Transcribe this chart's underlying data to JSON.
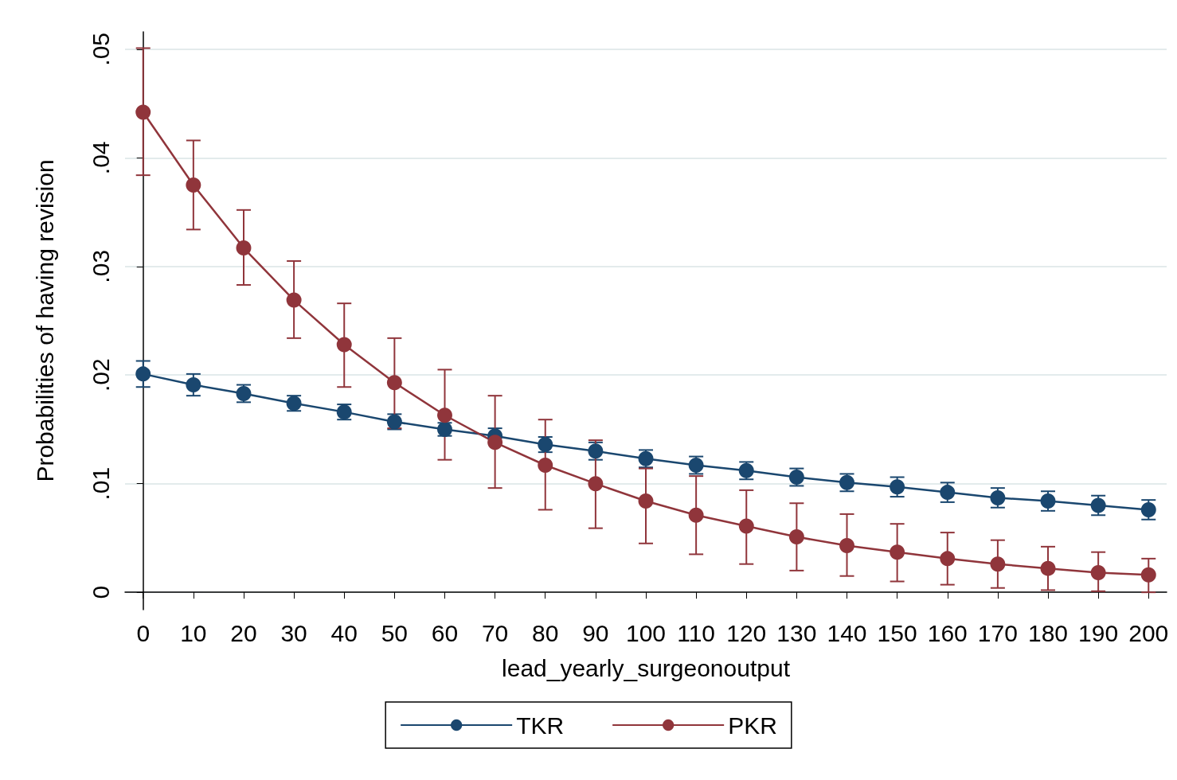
{
  "chart_data": {
    "type": "line",
    "xlabel": "lead_yearly_surgeonoutput",
    "ylabel": "Probabilities of having revision",
    "x": [
      0,
      10,
      20,
      30,
      40,
      50,
      60,
      70,
      80,
      90,
      100,
      110,
      120,
      130,
      140,
      150,
      160,
      170,
      180,
      190,
      200
    ],
    "series": [
      {
        "name": "TKR",
        "color": "#1a476f",
        "values": [
          0.0201,
          0.0191,
          0.0183,
          0.0174,
          0.0166,
          0.0157,
          0.015,
          0.0144,
          0.0136,
          0.013,
          0.0123,
          0.0117,
          0.0112,
          0.0106,
          0.0101,
          0.0097,
          0.0092,
          0.0087,
          0.0084,
          0.008,
          0.0076
        ],
        "errors": [
          [
            0.0189,
            0.0213
          ],
          [
            0.0181,
            0.0201
          ],
          [
            0.0175,
            0.0191
          ],
          [
            0.0167,
            0.0181
          ],
          [
            0.0159,
            0.0173
          ],
          [
            0.015,
            0.0164
          ],
          [
            0.0144,
            0.0156
          ],
          [
            0.0144,
            0.0151
          ],
          [
            0.0129,
            0.0143
          ],
          [
            0.0122,
            0.0138
          ],
          [
            0.0115,
            0.0131
          ],
          [
            0.0109,
            0.0125
          ],
          [
            0.0104,
            0.012
          ],
          [
            0.0098,
            0.0114
          ],
          [
            0.0093,
            0.0109
          ],
          [
            0.0088,
            0.0106
          ],
          [
            0.0083,
            0.0101
          ],
          [
            0.0078,
            0.0096
          ],
          [
            0.0075,
            0.0093
          ],
          [
            0.0071,
            0.0089
          ],
          [
            0.0067,
            0.0085
          ]
        ]
      },
      {
        "name": "PKR",
        "color": "#90353b",
        "values": [
          0.0442,
          0.0375,
          0.0317,
          0.0269,
          0.0228,
          0.0193,
          0.0163,
          0.0138,
          0.0117,
          0.01,
          0.0084,
          0.0071,
          0.0061,
          0.0051,
          0.0043,
          0.0037,
          0.0031,
          0.0026,
          0.0022,
          0.0018,
          0.0016
        ],
        "errors": [
          [
            0.0384,
            0.0501
          ],
          [
            0.0334,
            0.0416
          ],
          [
            0.0283,
            0.0352
          ],
          [
            0.0234,
            0.0305
          ],
          [
            0.0189,
            0.0266
          ],
          [
            0.0151,
            0.0234
          ],
          [
            0.0122,
            0.0205
          ],
          [
            0.0096,
            0.0181
          ],
          [
            0.0076,
            0.0159
          ],
          [
            0.0059,
            0.014
          ],
          [
            0.0045,
            0.0114
          ],
          [
            0.0035,
            0.0107
          ],
          [
            0.0026,
            0.0094
          ],
          [
            0.002,
            0.0082
          ],
          [
            0.0015,
            0.0072
          ],
          [
            0.001,
            0.0063
          ],
          [
            0.0007,
            0.0055
          ],
          [
            0.0004,
            0.0048
          ],
          [
            0.0002,
            0.0042
          ],
          [
            0.0001,
            0.0037
          ],
          [
            0.0,
            0.0031
          ]
        ]
      }
    ],
    "xlim": [
      -3.6,
      203.6
    ],
    "xticks": [
      0,
      10,
      20,
      30,
      40,
      50,
      60,
      70,
      80,
      90,
      100,
      110,
      120,
      130,
      140,
      150,
      160,
      170,
      180,
      190,
      200
    ],
    "ylim": [
      -0.0016,
      0.0516
    ],
    "yticks": [
      {
        "value": 0,
        "label": "0"
      },
      {
        "value": 0.01,
        "label": ".01"
      },
      {
        "value": 0.02,
        "label": ".02"
      },
      {
        "value": 0.03,
        "label": ".03"
      },
      {
        "value": 0.04,
        "label": ".04"
      },
      {
        "value": 0.05,
        "label": ".05"
      }
    ],
    "grid": "y",
    "legend": "bottom",
    "marker": "circle",
    "line_style": "solid"
  }
}
